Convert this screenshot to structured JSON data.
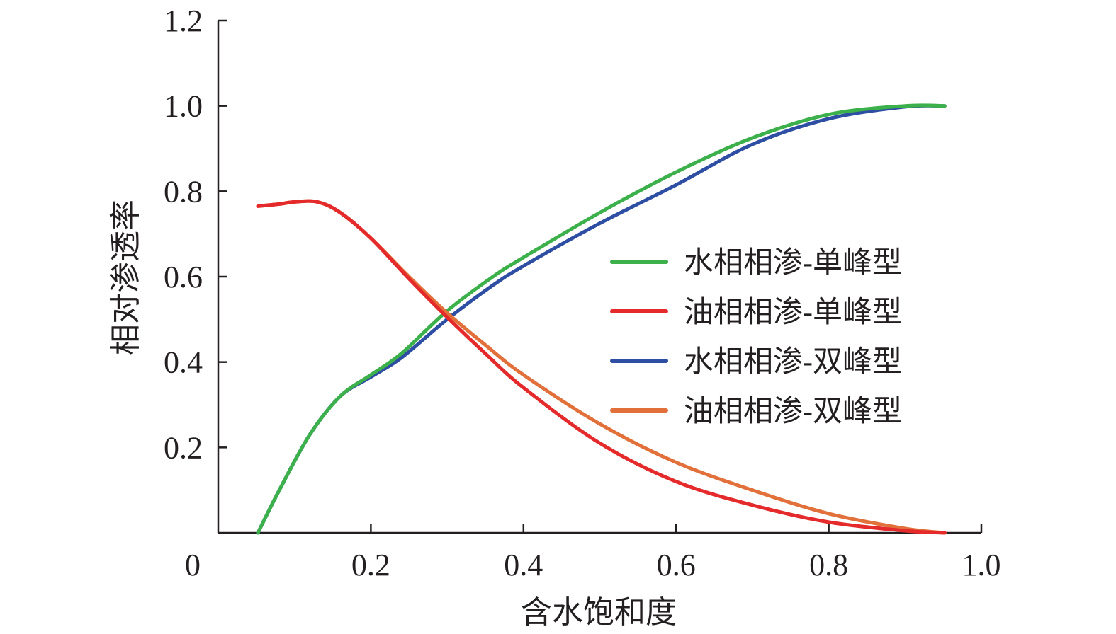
{
  "chart_data": {
    "type": "line",
    "xlabel": "含水饱和度",
    "ylabel": "相对渗透率",
    "xlim": [
      0,
      1.0
    ],
    "ylim": [
      0,
      1.2
    ],
    "x_ticks": [
      "0",
      "0.2",
      "0.4",
      "0.6",
      "0.8",
      "1.0"
    ],
    "x_tick_values": [
      0,
      0.2,
      0.4,
      0.6,
      0.8,
      1.0
    ],
    "y_ticks": [
      "0.2",
      "0.4",
      "0.6",
      "0.8",
      "1.0",
      "1.2"
    ],
    "y_tick_values": [
      0.2,
      0.4,
      0.6,
      0.8,
      1.0,
      1.2
    ],
    "grid": false,
    "legend_position": "right",
    "series": [
      {
        "name": "水相相渗-单峰型",
        "color": "#3cb04a",
        "x": [
          0.052,
          0.08,
          0.12,
          0.16,
          0.2,
          0.24,
          0.3,
          0.36,
          0.4,
          0.5,
          0.6,
          0.7,
          0.8,
          0.9,
          0.952
        ],
        "y": [
          0.0,
          0.1,
          0.23,
          0.32,
          0.37,
          0.42,
          0.52,
          0.6,
          0.645,
          0.75,
          0.845,
          0.925,
          0.98,
          1.0,
          1.0
        ]
      },
      {
        "name": "油相相渗-单峰型",
        "color": "#e42a2a",
        "x": [
          0.052,
          0.08,
          0.1,
          0.13,
          0.16,
          0.2,
          0.25,
          0.3,
          0.35,
          0.4,
          0.5,
          0.6,
          0.7,
          0.8,
          0.9,
          0.952
        ],
        "y": [
          0.765,
          0.77,
          0.775,
          0.775,
          0.75,
          0.69,
          0.595,
          0.505,
          0.42,
          0.34,
          0.21,
          0.12,
          0.065,
          0.025,
          0.005,
          0.0
        ]
      },
      {
        "name": "水相相渗-双峰型",
        "color": "#2e4ea3",
        "x": [
          0.052,
          0.08,
          0.12,
          0.16,
          0.2,
          0.24,
          0.3,
          0.36,
          0.4,
          0.5,
          0.6,
          0.7,
          0.8,
          0.9,
          0.952
        ],
        "y": [
          0.0,
          0.1,
          0.23,
          0.32,
          0.365,
          0.41,
          0.5,
          0.58,
          0.625,
          0.725,
          0.815,
          0.91,
          0.97,
          0.998,
          1.0
        ]
      },
      {
        "name": "油相相渗-双峰型",
        "color": "#e2703a",
        "x": [
          0.052,
          0.08,
          0.1,
          0.13,
          0.16,
          0.2,
          0.25,
          0.3,
          0.35,
          0.4,
          0.5,
          0.6,
          0.7,
          0.8,
          0.9,
          0.952
        ],
        "y": [
          0.765,
          0.77,
          0.775,
          0.775,
          0.75,
          0.69,
          0.6,
          0.515,
          0.44,
          0.37,
          0.255,
          0.165,
          0.1,
          0.045,
          0.01,
          0.0
        ]
      }
    ]
  }
}
